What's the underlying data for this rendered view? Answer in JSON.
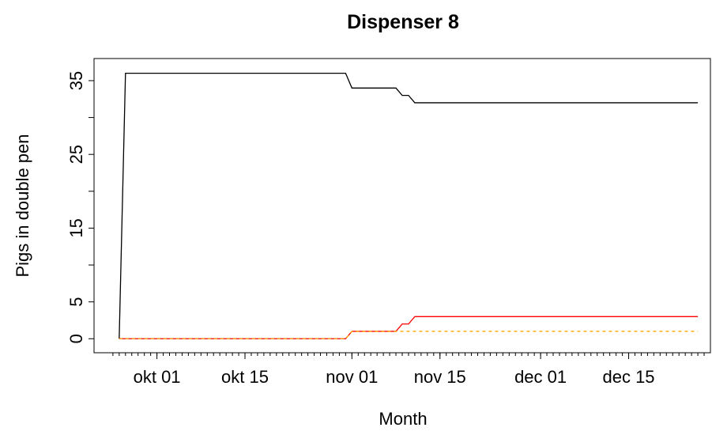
{
  "chart_data": {
    "type": "line",
    "title": "Dispenser 8",
    "xlabel": "Month",
    "ylabel": "Pigs in double pen",
    "x": [
      "09-25",
      "09-26",
      "10-31",
      "11-01",
      "11-08",
      "11-09",
      "11-10",
      "11-11",
      "12-26"
    ],
    "series": [
      {
        "color": "#000000",
        "dash": false,
        "values": [
          0,
          36,
          36,
          34,
          34,
          33,
          33,
          32,
          32
        ]
      },
      {
        "color": "#ff0000",
        "dash": false,
        "values": [
          0,
          0,
          0,
          1,
          1,
          2,
          2,
          3,
          3
        ]
      },
      {
        "color": "#ffa500",
        "dash": true,
        "values": [
          0,
          0,
          0,
          1,
          1,
          1,
          1,
          1,
          1
        ]
      }
    ],
    "xlim": [
      "09-21",
      "12-28"
    ],
    "xticks": [
      {
        "value": "10-01",
        "label": "okt 01"
      },
      {
        "value": "10-15",
        "label": "okt 15"
      },
      {
        "value": "11-01",
        "label": "nov 01"
      },
      {
        "value": "11-15",
        "label": "nov 15"
      },
      {
        "value": "12-01",
        "label": "dec 01"
      },
      {
        "value": "12-15",
        "label": "dec 15"
      }
    ],
    "x_minor_tick_range": [
      "09-24",
      "12-27"
    ],
    "ylim": [
      -1.9,
      38
    ],
    "yticks": [
      0,
      5,
      15,
      25,
      35
    ],
    "y_unlabeled_ticks": [
      10,
      20,
      30
    ]
  }
}
